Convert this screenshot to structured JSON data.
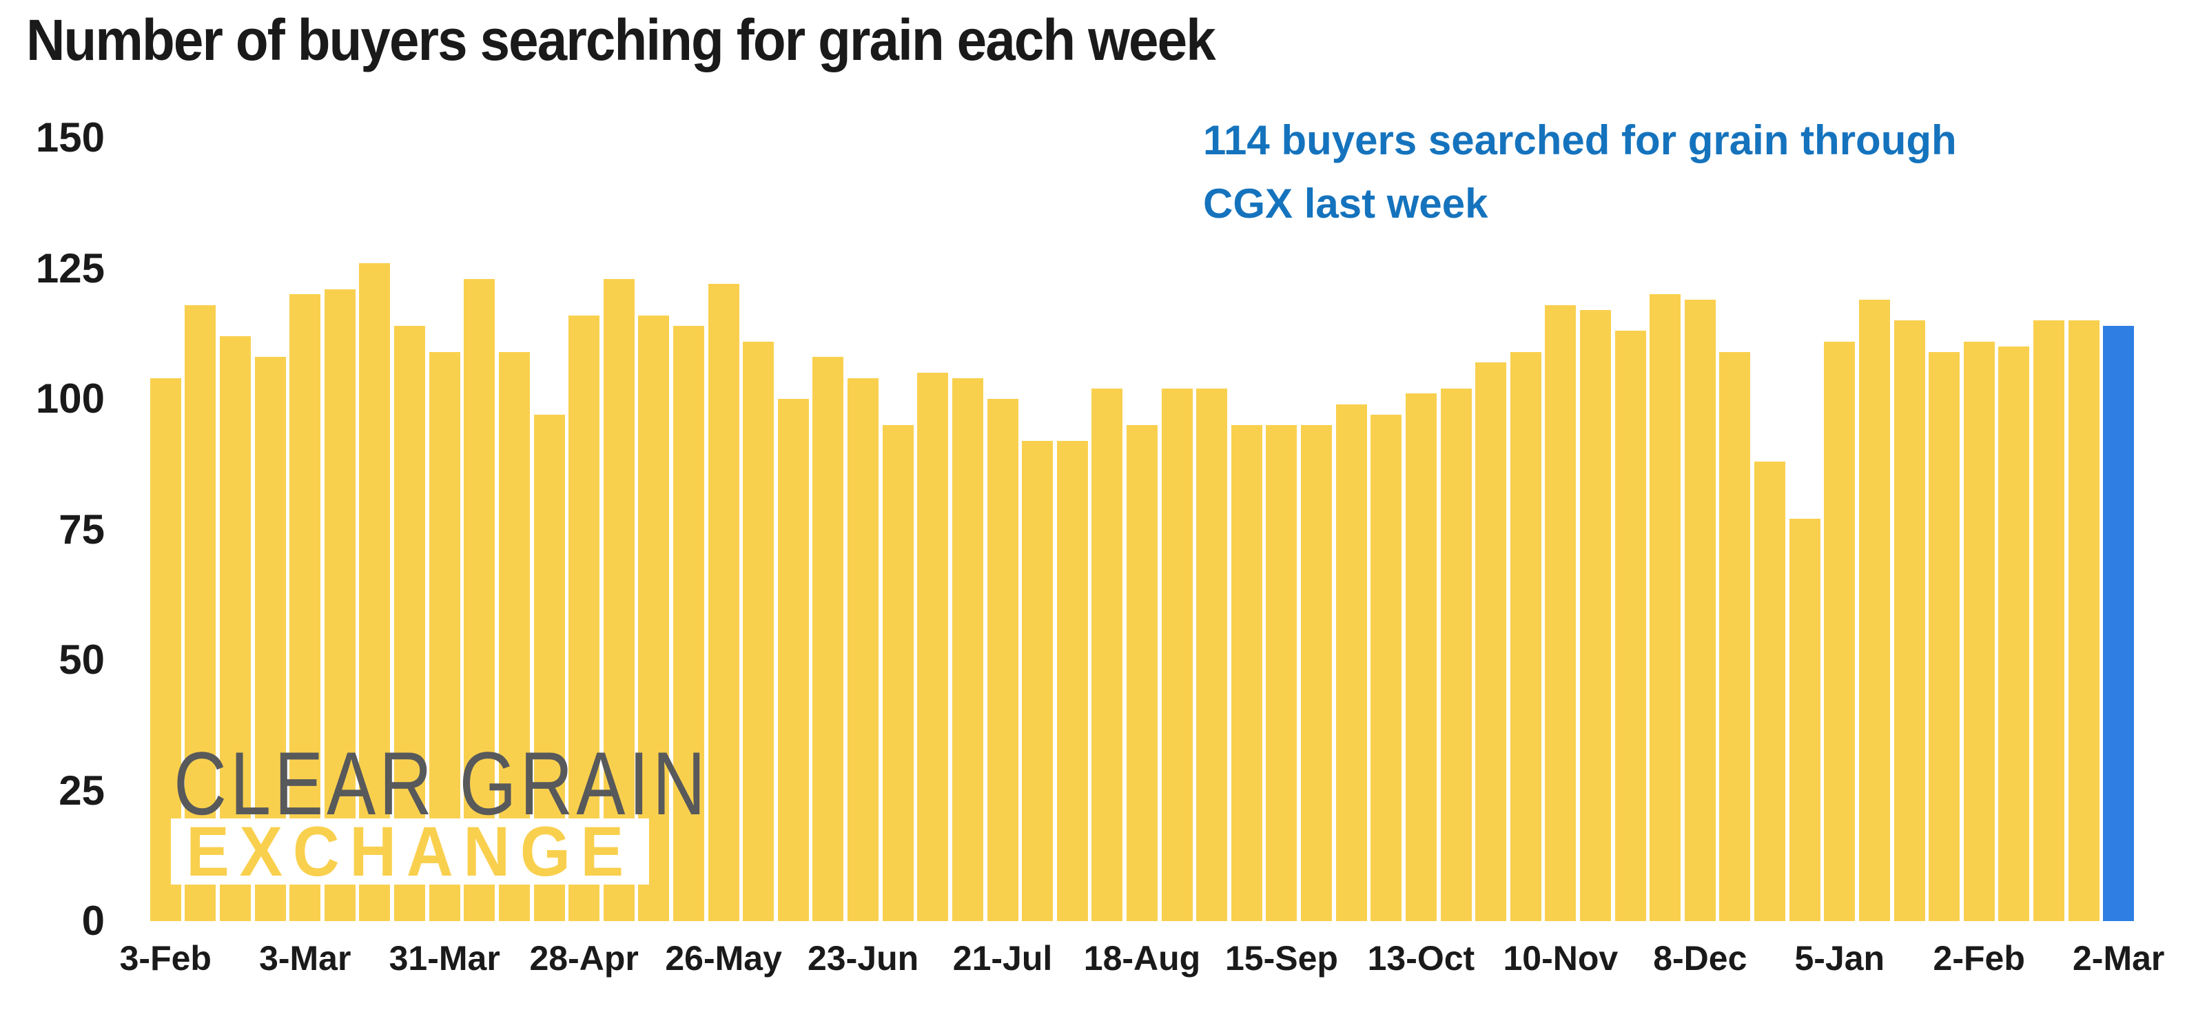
{
  "title": "Number of buyers searching for grain each week",
  "annotation": {
    "line1": "114 buyers searched for grain through",
    "line2": "CGX last week",
    "color": "#1573BD"
  },
  "logo": {
    "line1": "CLEAR GRAIN",
    "line2": "EXCHANGE",
    "gray_color": "#58595B"
  },
  "colors": {
    "bar": "#F9D04E",
    "highlight": "#2F7EE3",
    "text": "#1A1A1A",
    "background": "#FFFFFF"
  },
  "chart_data": {
    "type": "bar",
    "title": "Number of buyers searching for grain each week",
    "xlabel": "",
    "ylabel": "",
    "ylim": [
      0,
      150
    ],
    "y_ticks": [
      0,
      25,
      50,
      75,
      100,
      125,
      150
    ],
    "grid": false,
    "legend": false,
    "values": [
      104,
      118,
      112,
      108,
      120,
      121,
      126,
      114,
      109,
      123,
      109,
      97,
      116,
      123,
      116,
      114,
      122,
      111,
      100,
      108,
      104,
      95,
      105,
      104,
      100,
      92,
      92,
      102,
      95,
      102,
      102,
      95,
      95,
      95,
      99,
      97,
      101,
      102,
      107,
      109,
      118,
      117,
      113,
      120,
      119,
      109,
      88,
      77,
      111,
      119,
      115,
      109,
      111,
      110,
      115,
      115,
      114
    ],
    "highlight_index": 56,
    "highlight_value": 114,
    "x_ticks": [
      {
        "label": "3-Feb",
        "bar_index": 0
      },
      {
        "label": "3-Mar",
        "bar_index": 4
      },
      {
        "label": "31-Mar",
        "bar_index": 8
      },
      {
        "label": "28-Apr",
        "bar_index": 12
      },
      {
        "label": "26-May",
        "bar_index": 16
      },
      {
        "label": "23-Jun",
        "bar_index": 20
      },
      {
        "label": "21-Jul",
        "bar_index": 24
      },
      {
        "label": "18-Aug",
        "bar_index": 28
      },
      {
        "label": "15-Sep",
        "bar_index": 32
      },
      {
        "label": "13-Oct",
        "bar_index": 36
      },
      {
        "label": "10-Nov",
        "bar_index": 40
      },
      {
        "label": "8-Dec",
        "bar_index": 44
      },
      {
        "label": "5-Jan",
        "bar_index": 48
      },
      {
        "label": "2-Feb",
        "bar_index": 52
      },
      {
        "label": "2-Mar",
        "bar_index": 56
      }
    ]
  }
}
